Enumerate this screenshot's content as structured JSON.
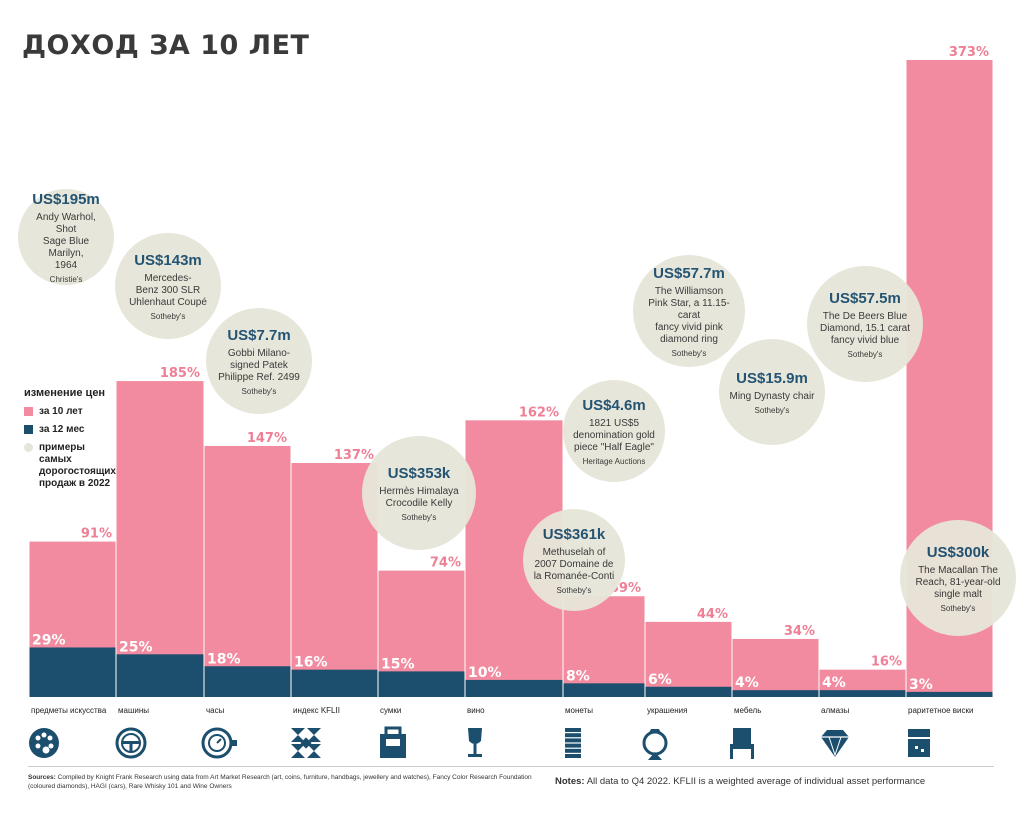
{
  "title": "ДОХОД ЗА 10 ЛЕТ",
  "legend": {
    "title": "изменение цен",
    "items": [
      {
        "label": "за 10 лет",
        "color": "#f28b9f"
      },
      {
        "label": "за 12 мес",
        "color": "#1c4e6e"
      },
      {
        "label": "примеры самых дорогостоящих продаж в 2022",
        "color": "#e7e5d9"
      }
    ]
  },
  "chart_data": {
    "type": "bar",
    "categories": [
      "предметы искусства",
      "машины",
      "часы",
      "индекс KFLII",
      "сумки",
      "вино",
      "монеты",
      "украшения",
      "мебель",
      "алмазы",
      "раритетное виски"
    ],
    "series": [
      {
        "name": "за 10 лет",
        "values": [
          91,
          185,
          147,
          137,
          74,
          162,
          59,
          44,
          34,
          16,
          373
        ],
        "labels": [
          "91%",
          "185%",
          "147%",
          "137%",
          "74%",
          "162%",
          "59%",
          "44%",
          "34%",
          "16%",
          "373%"
        ]
      },
      {
        "name": "за 12 мес",
        "values": [
          29,
          25,
          18,
          16,
          15,
          10,
          8,
          6,
          4,
          4,
          3
        ],
        "labels": [
          "29%",
          "25%",
          "18%",
          "16%",
          "15%",
          "10%",
          "8%",
          "6%",
          "4%",
          "4%",
          "3%"
        ]
      }
    ],
    "ylim": [
      0,
      373
    ]
  },
  "colors": {
    "ten_year": "#f28b9f",
    "twelve_month": "#1c4e6e",
    "bubble": "#e7e5d9",
    "icon": "#1c4e6e"
  },
  "icons": [
    "palette-icon",
    "steering-wheel-icon",
    "watch-icon",
    "kflii-index-icon",
    "handbag-icon",
    "wine-glass-icon",
    "coins-icon",
    "ring-icon",
    "chair-icon",
    "diamond-icon",
    "whisky-icon"
  ],
  "bubbles": [
    {
      "price": "US$195m",
      "desc": [
        "Andy Warhol, Shot",
        "Sage Blue Marilyn,",
        "1964"
      ],
      "source": "Christie's"
    },
    {
      "price": "US$143m",
      "desc": [
        "Mercedes-",
        "Benz 300 SLR",
        "Uhlenhaut Coupé"
      ],
      "source": "Sotheby's"
    },
    {
      "price": "US$7.7m",
      "desc": [
        "Gobbi Milano-",
        "signed Patek",
        "Philippe Ref. 2499"
      ],
      "source": "Sotheby's"
    },
    {
      "price": "US$353k",
      "desc": [
        "Hermès Himalaya",
        "Crocodile Kelly"
      ],
      "source": "Sotheby's"
    },
    {
      "price": "US$4.6m",
      "desc": [
        "1821 US$5",
        "denomination gold",
        "piece \"Half Eagle\""
      ],
      "source": "Heritage Auctions"
    },
    {
      "price": "US$361k",
      "desc": [
        "Methuselah of",
        "2007 Domaine de",
        "la Romanée-Conti"
      ],
      "source": "Sotheby's"
    },
    {
      "price": "US$57.7m",
      "desc": [
        "The Williamson",
        "Pink Star, a 11.15-carat",
        "fancy vivid pink",
        "diamond ring"
      ],
      "source": "Sotheby's"
    },
    {
      "price": "US$15.9m",
      "desc": [
        "Ming Dynasty chair"
      ],
      "source": "Sotheby's"
    },
    {
      "price": "US$57.5m",
      "desc": [
        "The De Beers Blue",
        "Diamond, 15.1 carat",
        "fancy vivid blue"
      ],
      "source": "Sotheby's"
    },
    {
      "price": "US$300k",
      "desc": [
        "The Macallan The",
        "Reach, 81-year-old",
        "single malt"
      ],
      "source": "Sotheby's"
    }
  ],
  "footer": {
    "sources_label": "Sources:",
    "sources": "Compiled by Knight Frank Research using data from Art Market Research (art, coins, furniture, handbags, jewellery and watches), Fancy Color Research Foundation (coloured diamonds), HAGI (cars), Rare Whisky 101 and Wine Owners",
    "notes_label": "Notes:",
    "notes": "All data to Q4 2022. KFLII is a weighted average of individual asset performance"
  }
}
